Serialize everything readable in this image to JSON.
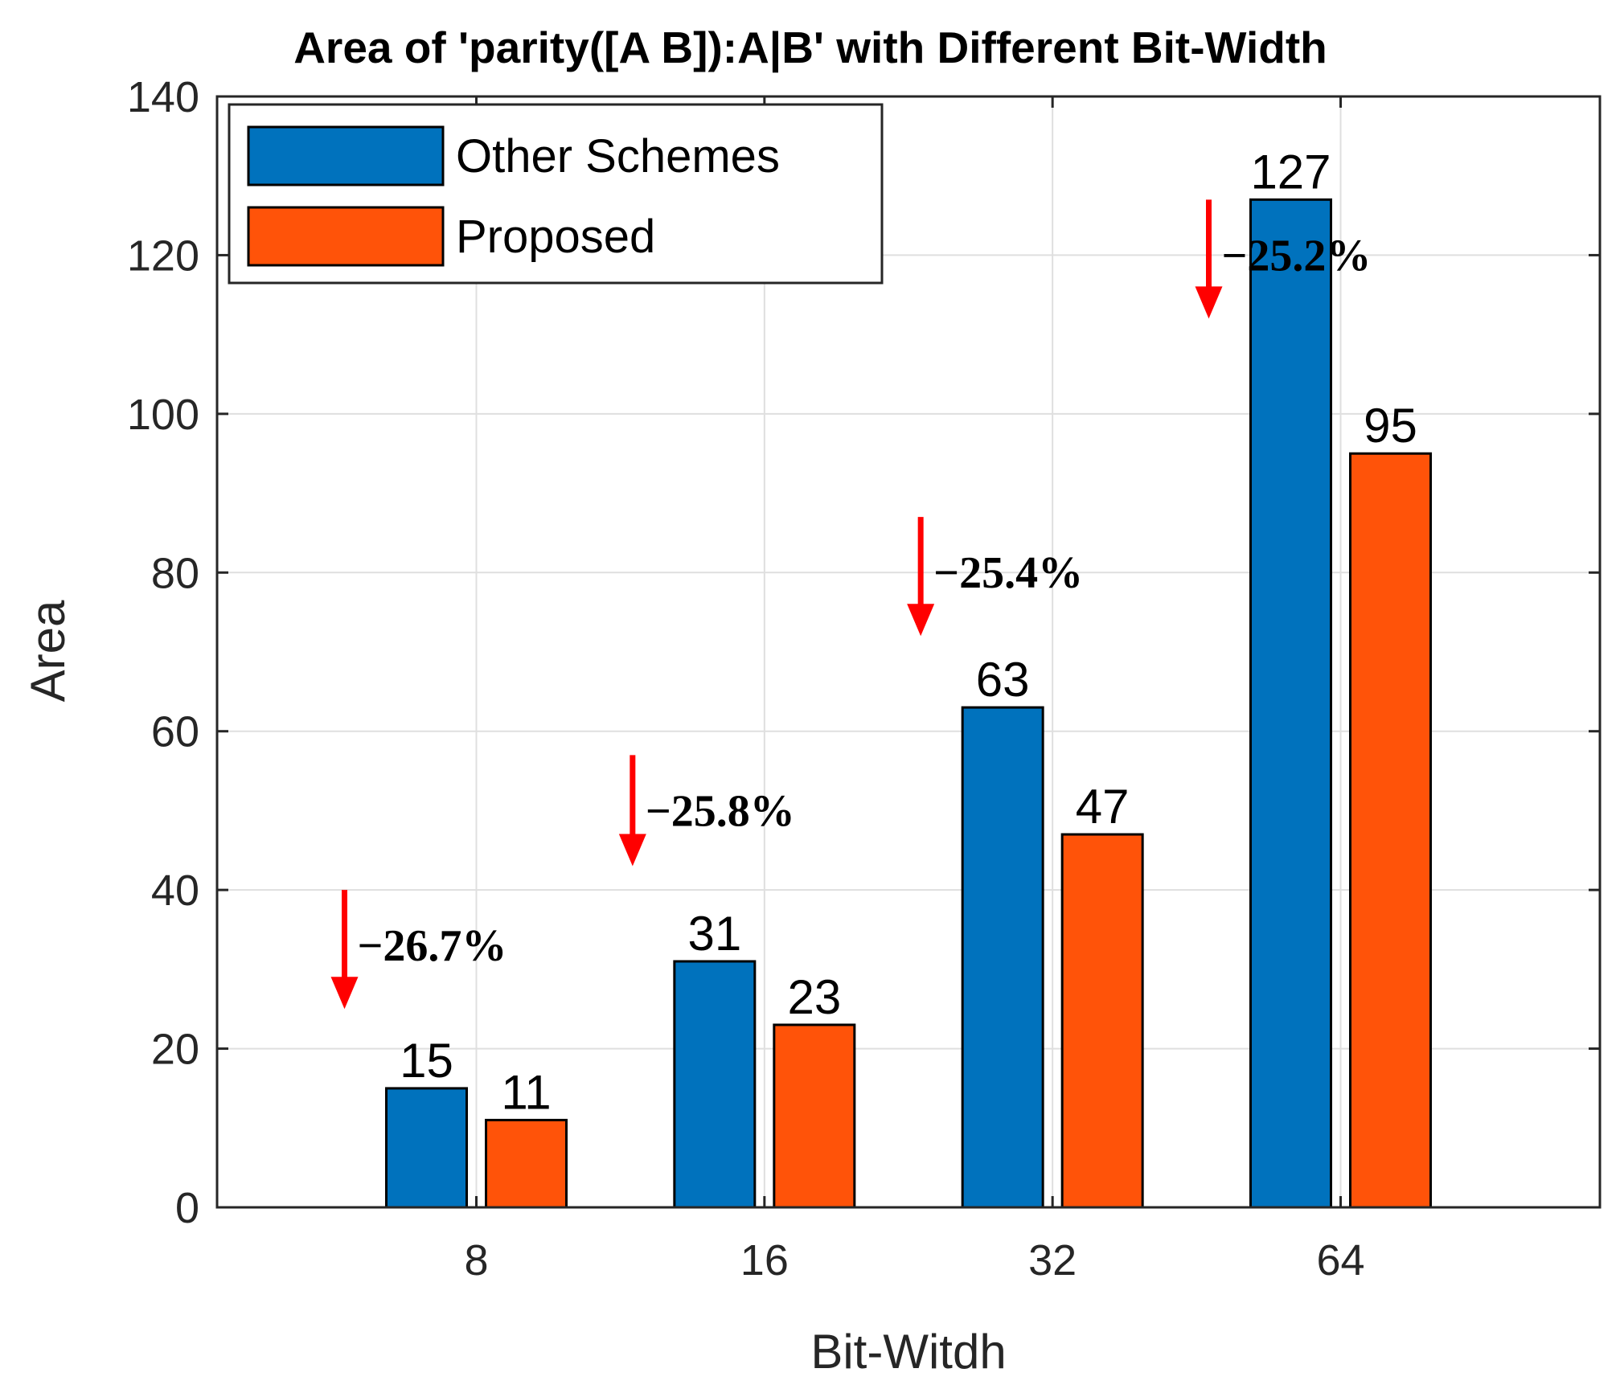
{
  "chart_data": {
    "type": "bar",
    "title": "Area of 'parity([A B]):A|B' with Different Bit-Width",
    "xlabel": "Bit-Witdh",
    "ylabel": "Area",
    "categories": [
      "8",
      "16",
      "32",
      "64"
    ],
    "series": [
      {
        "name": "Other Schemes",
        "color": "#0072BD",
        "values": [
          15,
          31,
          63,
          127
        ]
      },
      {
        "name": "Proposed",
        "color": "#FF5309",
        "values": [
          11,
          23,
          47,
          95
        ]
      }
    ],
    "ylim": [
      0,
      140
    ],
    "yticks": [
      "0",
      "20",
      "40",
      "60",
      "80",
      "100",
      "120",
      "140"
    ],
    "grid": true,
    "legend_position": "top-left",
    "annotations": [
      {
        "category": "8",
        "text": "−26.7%",
        "arrow_from": 40,
        "arrow_to": 25,
        "color": "#FF0000"
      },
      {
        "category": "16",
        "text": "−25.8%",
        "arrow_from": 57,
        "arrow_to": 43,
        "color": "#FF0000"
      },
      {
        "category": "32",
        "text": "−25.4%",
        "arrow_from": 87,
        "arrow_to": 72,
        "color": "#FF0000"
      },
      {
        "category": "64",
        "text": "−25.2%",
        "arrow_from": 127,
        "arrow_to": 112,
        "color": "#FF0000"
      }
    ]
  }
}
